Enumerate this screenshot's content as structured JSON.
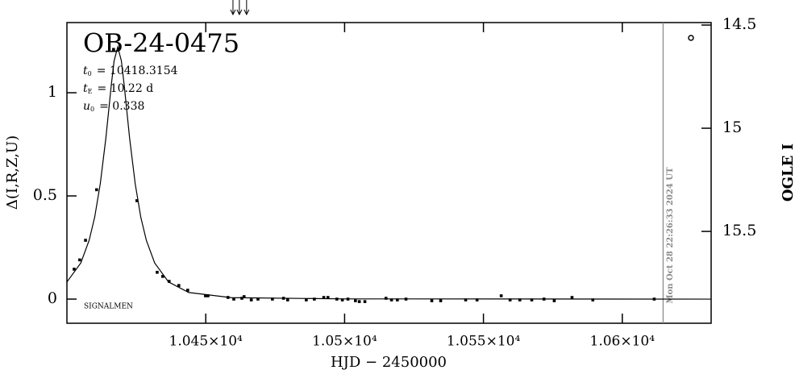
{
  "chart_data": {
    "type": "scatter",
    "title": "OB-24-0475",
    "params": [
      {
        "symbol": "t",
        "sub": "0",
        "text": "= 10418.3154"
      },
      {
        "symbol": "t",
        "sub": "E",
        "text": "= 10.22 d"
      },
      {
        "symbol": "u",
        "sub": "0",
        "text": "= 0.338"
      }
    ],
    "xlabel": "HJD − 2450000",
    "ylabel": "Δ(I,R,Z,U)",
    "y2label": "OGLE I",
    "footnote": "SIGNALMEN",
    "now_label": "Mon Oct 28 22:26:33 2024 UT",
    "now_x": 10614.7,
    "arrows_x": [
      10459.8,
      10462.1,
      10464.7
    ],
    "xlim": [
      10400,
      10632
    ],
    "ylim": [
      -0.117,
      1.34
    ],
    "y2lim": [
      15.945,
      14.488
    ],
    "xticks": [
      {
        "value": 10450,
        "label": "1.045×10⁴"
      },
      {
        "value": 10500,
        "label": "1.05×10⁴"
      },
      {
        "value": 10550,
        "label": "1.055×10⁴"
      },
      {
        "value": 10600,
        "label": "1.06×10⁴"
      }
    ],
    "yticks": [
      0,
      0.5,
      1
    ],
    "y2ticks": [
      14.5,
      15,
      15.5
    ],
    "color": "#000000",
    "points": {
      "x": [
        10402.6,
        10404.6,
        10406.7,
        10410.7,
        10416.8,
        10425.2,
        10432.5,
        10434.5,
        10436.8,
        10440.3,
        10443.5,
        10449.9,
        10450.8,
        10458.0,
        10460.1,
        10463.0,
        10463.8,
        10466.4,
        10468.8,
        10474.0,
        10478.0,
        10479.5,
        10486.2,
        10489.1,
        10492.5,
        10494.0,
        10497.2,
        10499.2,
        10501.2,
        10503.9,
        10505.3,
        10507.3,
        10514.9,
        10516.9,
        10519.0,
        10522.1,
        10531.4,
        10534.6,
        10543.6,
        10547.7,
        10556.4,
        10559.6,
        10563.1,
        10567.4,
        10571.8,
        10575.5,
        10581.9,
        10589.4,
        10611.5
      ],
      "values": [
        0.145,
        0.19,
        0.285,
        0.53,
        1.21,
        0.477,
        0.13,
        0.11,
        0.086,
        0.066,
        0.043,
        0.016,
        0.016,
        0.008,
        0,
        0.004,
        0.012,
        -0.004,
        0,
        0,
        0.004,
        -0.004,
        -0.004,
        0,
        0.008,
        0.008,
        0,
        -0.004,
        0,
        -0.008,
        -0.012,
        -0.012,
        0.004,
        -0.004,
        -0.004,
        0,
        -0.008,
        -0.008,
        -0.004,
        -0.004,
        0.016,
        -0.004,
        -0.004,
        -0.004,
        0,
        -0.008,
        0.008,
        -0.004,
        0
      ]
    },
    "model": {
      "x": [
        10400,
        10405,
        10408,
        10410,
        10412,
        10414,
        10416,
        10417,
        10418.3,
        10419.6,
        10420.6,
        10422.6,
        10424.6,
        10426.6,
        10428.6,
        10431.6,
        10436.6,
        10443.9,
        10459.2,
        10500,
        10632
      ],
      "values": [
        0.083,
        0.175,
        0.285,
        0.397,
        0.558,
        0.777,
        1.04,
        1.155,
        1.222,
        1.155,
        1.04,
        0.777,
        0.558,
        0.397,
        0.285,
        0.175,
        0.083,
        0.032,
        0.007,
        0.001,
        0
      ]
    }
  }
}
